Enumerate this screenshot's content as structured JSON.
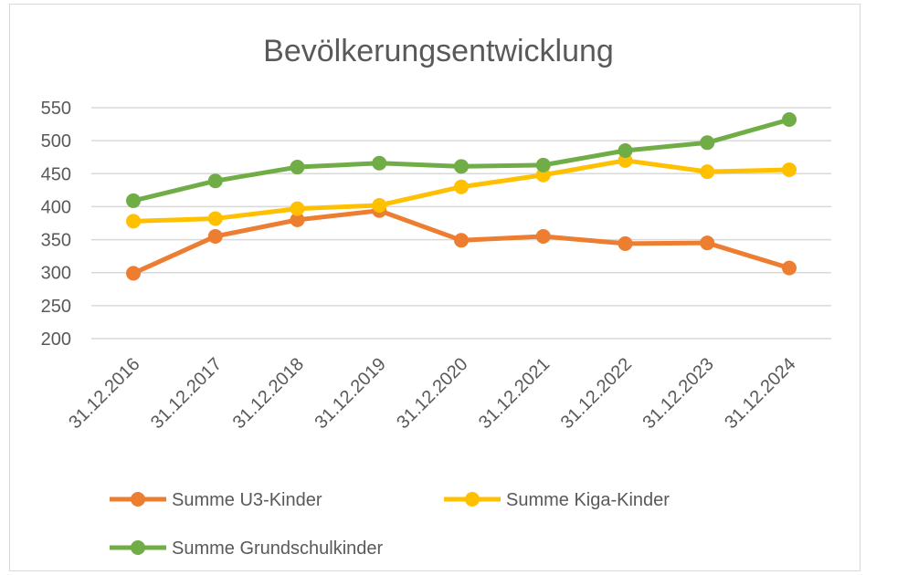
{
  "chart_data": {
    "type": "line",
    "title": "Bevölkerungsentwicklung",
    "xlabel": "",
    "ylabel": "",
    "categories": [
      "31.12.2016",
      "31.12.2017",
      "31.12.2018",
      "31.12.2019",
      "31.12.2020",
      "31.12.2021",
      "31.12.2022",
      "31.12.2023",
      "31.12.2024"
    ],
    "ylim": [
      200,
      550
    ],
    "yticks": [
      "200",
      "250",
      "300",
      "350",
      "400",
      "450",
      "500",
      "550"
    ],
    "grid": true,
    "legend_position": "bottom",
    "series": [
      {
        "name": "Summe U3-Kinder",
        "color": "#ED7D31",
        "values": [
          299,
          355,
          380,
          394,
          349,
          355,
          344,
          345,
          307
        ]
      },
      {
        "name": "Summe Kiga-Kinder",
        "color": "#FFC000",
        "values": [
          378,
          382,
          397,
          402,
          430,
          448,
          470,
          453,
          456
        ]
      },
      {
        "name": "Summe Grundschulkinder",
        "color": "#70AD47",
        "values": [
          409,
          439,
          460,
          466,
          461,
          463,
          485,
          497,
          532
        ]
      }
    ]
  }
}
